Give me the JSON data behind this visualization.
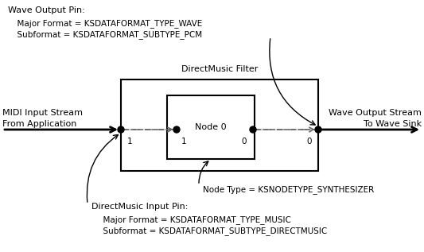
{
  "bg_color": "#ffffff",
  "filter_label": "DirectMusic Filter",
  "node_label": "Node 0",
  "left_label_line1": "MIDI Input Stream",
  "left_label_line2": "From Application",
  "right_label_line1": "Wave Output Stream",
  "right_label_line2": "To Wave Sink",
  "wave_pin_title": "Wave Output Pin:",
  "wave_pin_line1": "  Major Format = KSDATAFORMAT_TYPE_WAVE",
  "wave_pin_line2": "  Subformat = KSDATAFORMAT_SUBTYPE_PCM",
  "dm_pin_title": "DirectMusic Input Pin:",
  "dm_pin_line1": "  Major Format = KSDATAFORMAT_TYPE_MUSIC",
  "dm_pin_line2": "  Subformat = KSDATAFORMAT_SUBTYPE_DIRECTMUSIC",
  "node_type_label": "Node Type = KSNODETYPE_SYNTHESIZER",
  "pin_label_1a": "1",
  "pin_label_1b": "1",
  "pin_label_0a": "0",
  "pin_label_0b": "0",
  "fig_w": 5.33,
  "fig_h": 3.17,
  "dpi": 100
}
